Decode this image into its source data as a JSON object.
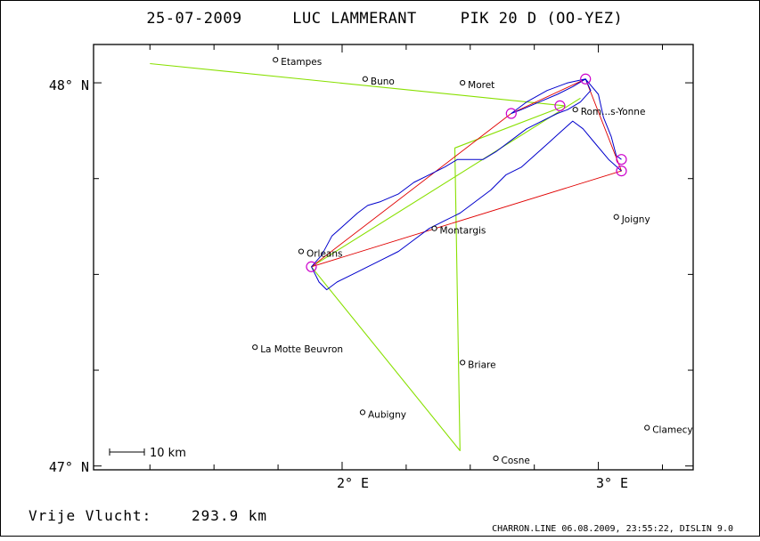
{
  "header": {
    "date": "25-07-2009",
    "pilot": "LUC LAMMERANT",
    "glider": "PIK 20 D (OO-YEZ)"
  },
  "axes": {
    "lon_ticks": [
      {
        "value": 2.0,
        "label": "2° E"
      },
      {
        "value": 3.0,
        "label": "3° E"
      }
    ],
    "lat_ticks": [
      {
        "value": 48.0,
        "label": "48° N"
      },
      {
        "value": 47.0,
        "label": "47° N"
      }
    ],
    "lon_range": [
      1.03,
      3.37
    ],
    "lat_range": [
      46.99,
      48.1
    ]
  },
  "colors": {
    "track": "#0000cc",
    "task": "#e00000",
    "declared": "#88e000",
    "turnpoint": "#cc00cc",
    "frame": "#000000"
  },
  "places": [
    {
      "name": "Etampes",
      "lon": 1.74,
      "lat": 48.06
    },
    {
      "name": "Buno",
      "lon": 2.09,
      "lat": 48.01
    },
    {
      "name": "Moret",
      "lon": 2.47,
      "lat": 48.0
    },
    {
      "name": "Rom...s-Yonne",
      "lon": 2.91,
      "lat": 47.93
    },
    {
      "name": "Orleans",
      "lon": 1.84,
      "lat": 47.56
    },
    {
      "name": "Montargis",
      "lon": 2.36,
      "lat": 47.62
    },
    {
      "name": "Joigny",
      "lon": 3.07,
      "lat": 47.65
    },
    {
      "name": "La Motte Beuvron",
      "lon": 1.66,
      "lat": 47.31
    },
    {
      "name": "Briare",
      "lon": 2.47,
      "lat": 47.27
    },
    {
      "name": "Aubigny",
      "lon": 2.08,
      "lat": 47.14
    },
    {
      "name": "Clamecy",
      "lon": 3.19,
      "lat": 47.1
    },
    {
      "name": "Cosne",
      "lon": 2.6,
      "lat": 47.02
    }
  ],
  "declared_route": [
    {
      "lon": 1.25,
      "lat": 48.05
    },
    {
      "lon": 2.87,
      "lat": 47.94
    },
    {
      "lon": 2.44,
      "lat": 47.83
    },
    {
      "lon": 2.46,
      "lat": 47.04
    },
    {
      "lon": 1.88,
      "lat": 47.52
    },
    {
      "lon": 2.93,
      "lat": 47.96
    }
  ],
  "task_route": [
    {
      "lon": 1.88,
      "lat": 47.52
    },
    {
      "lon": 2.66,
      "lat": 47.92
    },
    {
      "lon": 2.95,
      "lat": 48.01
    },
    {
      "lon": 3.09,
      "lat": 47.77
    },
    {
      "lon": 1.88,
      "lat": 47.52
    }
  ],
  "turnpoints": [
    {
      "lon": 1.88,
      "lat": 47.52
    },
    {
      "lon": 2.66,
      "lat": 47.92
    },
    {
      "lon": 2.85,
      "lat": 47.94
    },
    {
      "lon": 2.95,
      "lat": 48.01
    },
    {
      "lon": 3.09,
      "lat": 47.8
    },
    {
      "lon": 3.09,
      "lat": 47.77
    }
  ],
  "track_north": [
    {
      "lon": 1.88,
      "lat": 47.52
    },
    {
      "lon": 1.92,
      "lat": 47.55
    },
    {
      "lon": 1.96,
      "lat": 47.6
    },
    {
      "lon": 2.01,
      "lat": 47.63
    },
    {
      "lon": 2.06,
      "lat": 47.66
    },
    {
      "lon": 2.1,
      "lat": 47.68
    },
    {
      "lon": 2.15,
      "lat": 47.69
    },
    {
      "lon": 2.22,
      "lat": 47.71
    },
    {
      "lon": 2.28,
      "lat": 47.74
    },
    {
      "lon": 2.34,
      "lat": 47.76
    },
    {
      "lon": 2.4,
      "lat": 47.78
    },
    {
      "lon": 2.45,
      "lat": 47.8
    },
    {
      "lon": 2.5,
      "lat": 47.8
    },
    {
      "lon": 2.55,
      "lat": 47.8
    },
    {
      "lon": 2.6,
      "lat": 47.82
    },
    {
      "lon": 2.66,
      "lat": 47.85
    },
    {
      "lon": 2.72,
      "lat": 47.88
    },
    {
      "lon": 2.78,
      "lat": 47.9
    },
    {
      "lon": 2.84,
      "lat": 47.92
    },
    {
      "lon": 2.88,
      "lat": 47.93
    },
    {
      "lon": 2.93,
      "lat": 47.95
    },
    {
      "lon": 2.97,
      "lat": 47.98
    },
    {
      "lon": 2.95,
      "lat": 48.01
    },
    {
      "lon": 2.9,
      "lat": 47.99
    },
    {
      "lon": 2.84,
      "lat": 47.97
    },
    {
      "lon": 2.77,
      "lat": 47.95
    },
    {
      "lon": 2.7,
      "lat": 47.93
    },
    {
      "lon": 2.66,
      "lat": 47.92
    },
    {
      "lon": 2.72,
      "lat": 47.95
    },
    {
      "lon": 2.8,
      "lat": 47.98
    },
    {
      "lon": 2.88,
      "lat": 48.0
    },
    {
      "lon": 2.95,
      "lat": 48.01
    },
    {
      "lon": 3.0,
      "lat": 47.97
    },
    {
      "lon": 3.02,
      "lat": 47.91
    },
    {
      "lon": 3.05,
      "lat": 47.86
    },
    {
      "lon": 3.07,
      "lat": 47.81
    },
    {
      "lon": 3.09,
      "lat": 47.8
    }
  ],
  "track_south": [
    {
      "lon": 3.09,
      "lat": 47.77
    },
    {
      "lon": 3.04,
      "lat": 47.8
    },
    {
      "lon": 2.99,
      "lat": 47.84
    },
    {
      "lon": 2.94,
      "lat": 47.88
    },
    {
      "lon": 2.9,
      "lat": 47.9
    },
    {
      "lon": 2.85,
      "lat": 47.87
    },
    {
      "lon": 2.8,
      "lat": 47.84
    },
    {
      "lon": 2.75,
      "lat": 47.81
    },
    {
      "lon": 2.7,
      "lat": 47.78
    },
    {
      "lon": 2.64,
      "lat": 47.76
    },
    {
      "lon": 2.58,
      "lat": 47.72
    },
    {
      "lon": 2.52,
      "lat": 47.69
    },
    {
      "lon": 2.46,
      "lat": 47.66
    },
    {
      "lon": 2.4,
      "lat": 47.64
    },
    {
      "lon": 2.34,
      "lat": 47.62
    },
    {
      "lon": 2.28,
      "lat": 47.59
    },
    {
      "lon": 2.22,
      "lat": 47.56
    },
    {
      "lon": 2.16,
      "lat": 47.54
    },
    {
      "lon": 2.1,
      "lat": 47.52
    },
    {
      "lon": 2.04,
      "lat": 47.5
    },
    {
      "lon": 1.98,
      "lat": 47.48
    },
    {
      "lon": 1.94,
      "lat": 47.46
    },
    {
      "lon": 1.91,
      "lat": 47.48
    },
    {
      "lon": 1.88,
      "lat": 47.52
    }
  ],
  "scale_bar": {
    "label": "10 km"
  },
  "footer": {
    "distance_label": "Vrije Vlucht:",
    "distance_value": "293.9 km",
    "file_info": "CHARRON.LINE 06.08.2009, 23:55:22, DISLIN 9.0"
  }
}
